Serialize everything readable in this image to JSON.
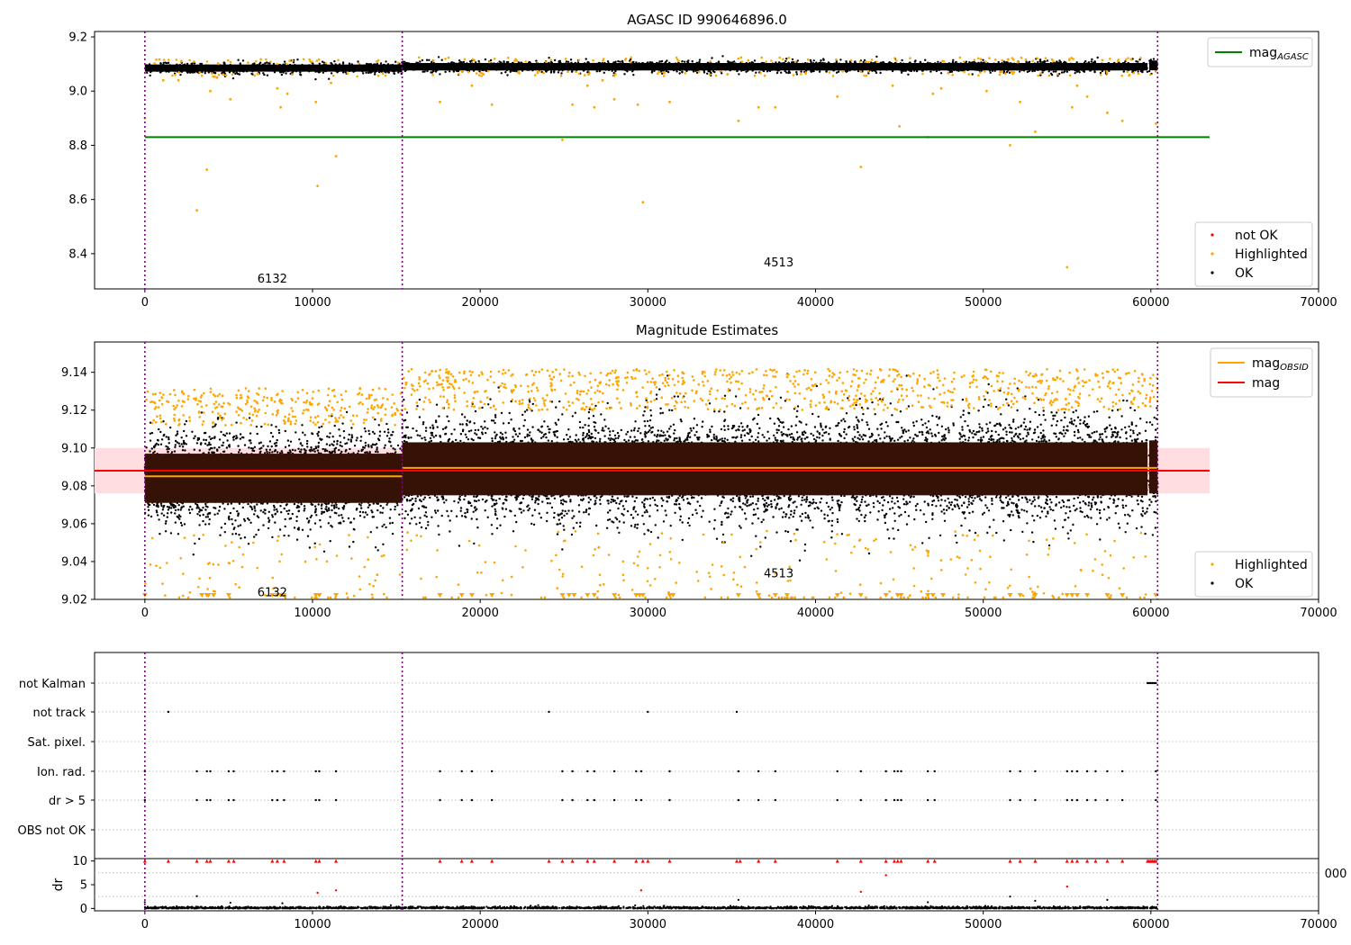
{
  "chart_data": [
    {
      "id": "top",
      "type": "scatter",
      "title": "AGASC ID 990646896.0",
      "xlim": [
        -3000,
        70000
      ],
      "ylim": [
        8.27,
        9.22
      ],
      "xticks": [
        0,
        10000,
        20000,
        30000,
        40000,
        50000,
        60000,
        70000
      ],
      "yticks": [
        8.4,
        8.6,
        8.8,
        9.0,
        9.2
      ],
      "ytick_labels": [
        "8.4",
        "8.6",
        "8.8",
        "9.0",
        "9.2"
      ],
      "obs_boundaries": [
        0,
        15350,
        60400
      ],
      "obs_labels": [
        {
          "text": "6132",
          "x": 7600,
          "y": 8.31
        },
        {
          "text": "4513",
          "x": 37800,
          "y": 8.37
        }
      ],
      "lines": [
        {
          "name": "mag_AGASC",
          "label_main": "mag",
          "label_sub": "AGASC",
          "y": 8.83,
          "x0": 0,
          "x1": 63500,
          "color": "#008000"
        }
      ],
      "band_segments": [
        {
          "x0": 0,
          "x1": 15350,
          "center": 9.085,
          "half": 0.022
        },
        {
          "x0": 15350,
          "x1": 59800,
          "center": 9.09,
          "half": 0.023
        },
        {
          "x0": 59900,
          "x1": 60400,
          "center": 9.095,
          "half": 0.03
        }
      ],
      "outliers": [
        [
          0,
          8.9
        ],
        [
          1100,
          9.04
        ],
        [
          2000,
          9.04
        ],
        [
          3100,
          8.56
        ],
        [
          3700,
          8.71
        ],
        [
          3900,
          9.0
        ],
        [
          4300,
          9.05
        ],
        [
          5100,
          8.97
        ],
        [
          7900,
          9.01
        ],
        [
          8100,
          8.94
        ],
        [
          8500,
          8.99
        ],
        [
          10200,
          8.96
        ],
        [
          10300,
          8.65
        ],
        [
          11100,
          9.03
        ],
        [
          11400,
          8.76
        ],
        [
          17600,
          8.96
        ],
        [
          19500,
          9.02
        ],
        [
          20700,
          8.95
        ],
        [
          24900,
          8.82
        ],
        [
          25500,
          8.95
        ],
        [
          26400,
          9.02
        ],
        [
          26800,
          8.94
        ],
        [
          27300,
          9.04
        ],
        [
          28000,
          8.97
        ],
        [
          29400,
          8.95
        ],
        [
          29700,
          8.59
        ],
        [
          31300,
          8.96
        ],
        [
          35400,
          8.89
        ],
        [
          36600,
          8.94
        ],
        [
          37600,
          8.94
        ],
        [
          41300,
          8.98
        ],
        [
          42700,
          8.72
        ],
        [
          44600,
          9.02
        ],
        [
          45000,
          8.87
        ],
        [
          46700,
          8.83
        ],
        [
          47000,
          8.99
        ],
        [
          47500,
          9.01
        ],
        [
          50200,
          9.0
        ],
        [
          51600,
          8.8
        ],
        [
          52200,
          8.96
        ],
        [
          53100,
          8.85
        ],
        [
          55000,
          8.35
        ],
        [
          55300,
          8.94
        ],
        [
          55600,
          9.02
        ],
        [
          56200,
          8.98
        ],
        [
          57400,
          8.92
        ],
        [
          58300,
          8.89
        ],
        [
          60300,
          8.88
        ]
      ],
      "legend_lines": [
        {
          "label_main": "mag",
          "label_sub": "AGASC",
          "color": "#008000"
        }
      ],
      "legend_markers": [
        {
          "label": "not OK",
          "color": "#ff0000"
        },
        {
          "label": "Highlighted",
          "color": "#ffa500"
        },
        {
          "label": "OK",
          "color": "#000000"
        }
      ]
    },
    {
      "id": "mid",
      "type": "scatter",
      "title": "Magnitude Estimates",
      "xlim": [
        -3000,
        70000
      ],
      "ylim": [
        9.02,
        9.156
      ],
      "xticks": [
        0,
        10000,
        20000,
        30000,
        40000,
        50000,
        60000,
        70000
      ],
      "yticks": [
        9.02,
        9.04,
        9.06,
        9.08,
        9.1,
        9.12,
        9.14
      ],
      "ytick_labels": [
        "9.02",
        "9.04",
        "9.06",
        "9.08",
        "9.10",
        "9.12",
        "9.14"
      ],
      "obs_boundaries": [
        0,
        15350,
        60400
      ],
      "obs_labels": [
        {
          "text": "6132",
          "x": 7600,
          "y": 9.024
        },
        {
          "text": "4513",
          "x": 37800,
          "y": 9.034
        }
      ],
      "mag": 9.088,
      "mag_band": [
        9.076,
        9.1
      ],
      "mag_obsid": [
        {
          "x0": 0,
          "x1": 15350,
          "y": 9.085
        },
        {
          "x0": 15350,
          "x1": 60400,
          "y": 9.0895
        }
      ],
      "density_segments": [
        {
          "x0": 0,
          "x1": 15350,
          "center": 9.084,
          "half_dense": 0.013,
          "half_spread": 0.028
        },
        {
          "x0": 15350,
          "x1": 59800,
          "center": 9.089,
          "half_dense": 0.014,
          "half_spread": 0.031
        },
        {
          "x0": 59900,
          "x1": 60400,
          "center": 9.09,
          "half_dense": 0.014,
          "half_spread": 0.03
        }
      ],
      "low_triangles_x": [
        0,
        3400,
        3700,
        3800,
        4100,
        5000,
        7600,
        7900,
        8100,
        8300,
        10200,
        10400,
        11400,
        17600,
        18900,
        19500,
        20700,
        24900,
        25300,
        25600,
        26400,
        26800,
        28000,
        29300,
        29500,
        29700,
        31300,
        31500,
        35400,
        36600,
        37600,
        38300,
        41300,
        42700,
        44200,
        44900,
        45100,
        46700,
        47000,
        47600,
        51600,
        52200,
        53100,
        55000,
        55300,
        55600,
        56200,
        57400,
        58300,
        60300
      ],
      "legend_lines": [
        {
          "label_main": "mag",
          "label_sub": "OBSID",
          "color": "#ffa500"
        },
        {
          "label_main": "mag",
          "label_sub": "",
          "color": "#ff0000"
        }
      ],
      "legend_markers": [
        {
          "label": "Highlighted",
          "color": "#ffa500"
        },
        {
          "label": "OK",
          "color": "#000000"
        }
      ]
    },
    {
      "id": "flags",
      "type": "scatter",
      "xlim": [
        -3000,
        70000
      ],
      "categories": [
        "not Kalman",
        "not track",
        "Sat. pixel.",
        "Ion. rad.",
        "dr > 5",
        "OBS not OK"
      ],
      "obs_boundaries": [
        0,
        15350,
        60400
      ],
      "flags": {
        "not Kalman": [
          59800,
          59900,
          60000,
          60100,
          60200,
          60300
        ],
        "not track": [
          1400,
          24100,
          30000,
          35300
        ],
        "Sat. pixel.": [],
        "Ion. rad.": [
          0,
          3100,
          3700,
          3900,
          5000,
          5300,
          7600,
          7900,
          8300,
          10200,
          10400,
          11400,
          17600,
          18900,
          19500,
          20700,
          24900,
          25500,
          26400,
          26800,
          28000,
          29300,
          29600,
          31300,
          35400,
          36600,
          37600,
          41300,
          42700,
          44200,
          44700,
          44900,
          45100,
          46700,
          47100,
          51600,
          52200,
          53100,
          55000,
          55300,
          55600,
          56200,
          56700,
          57400,
          58300,
          60300
        ],
        "dr > 5": [
          0,
          3100,
          3700,
          3900,
          5000,
          5300,
          7600,
          7900,
          8300,
          10200,
          10400,
          11400,
          17600,
          18900,
          19500,
          20700,
          24900,
          25500,
          26400,
          26800,
          28000,
          29300,
          29600,
          31300,
          35400,
          36600,
          37600,
          41300,
          42700,
          44200,
          44700,
          44900,
          45100,
          46700,
          47100,
          51600,
          52200,
          53100,
          55000,
          55300,
          55600,
          56200,
          56700,
          57400,
          58300,
          60300
        ],
        "OBS not OK": []
      }
    },
    {
      "id": "dr",
      "type": "scatter",
      "ylabel": "dr",
      "xlim": [
        -3000,
        70000
      ],
      "ylim": [
        -0.5,
        10.5
      ],
      "xticks": [
        0,
        10000,
        20000,
        30000,
        40000,
        50000,
        60000,
        70000
      ],
      "yticks": [
        0,
        5,
        10
      ],
      "ytick_labels": [
        "0",
        "5",
        "10"
      ],
      "obs_boundaries": [
        0,
        15350,
        60400
      ],
      "red_points": [
        [
          0,
          10
        ],
        [
          1400,
          10
        ],
        [
          3100,
          10
        ],
        [
          3700,
          10
        ],
        [
          3900,
          10
        ],
        [
          5000,
          10
        ],
        [
          5300,
          10
        ],
        [
          7600,
          10
        ],
        [
          7900,
          10
        ],
        [
          8300,
          10
        ],
        [
          10200,
          10
        ],
        [
          10300,
          3.3
        ],
        [
          10400,
          10
        ],
        [
          11400,
          10
        ],
        [
          11400,
          3.8
        ],
        [
          17600,
          10
        ],
        [
          18900,
          10
        ],
        [
          19500,
          10
        ],
        [
          20700,
          10
        ],
        [
          24100,
          10
        ],
        [
          24900,
          10
        ],
        [
          25500,
          10
        ],
        [
          26400,
          10
        ],
        [
          26800,
          10
        ],
        [
          28000,
          10
        ],
        [
          29300,
          10
        ],
        [
          29600,
          3.8
        ],
        [
          29700,
          10
        ],
        [
          30000,
          10
        ],
        [
          31300,
          10
        ],
        [
          35300,
          10
        ],
        [
          35500,
          10
        ],
        [
          36600,
          10
        ],
        [
          37600,
          10
        ],
        [
          41300,
          10
        ],
        [
          42700,
          10
        ],
        [
          42700,
          3.5
        ],
        [
          44200,
          10
        ],
        [
          44200,
          7
        ],
        [
          44700,
          10
        ],
        [
          44900,
          10
        ],
        [
          45100,
          10
        ],
        [
          46700,
          10
        ],
        [
          47100,
          10
        ],
        [
          51600,
          10
        ],
        [
          52200,
          10
        ],
        [
          53100,
          10
        ],
        [
          55000,
          10
        ],
        [
          55000,
          4.6
        ],
        [
          55300,
          10
        ],
        [
          55600,
          10
        ],
        [
          56200,
          10
        ],
        [
          56700,
          10
        ],
        [
          57400,
          10
        ],
        [
          58300,
          10
        ],
        [
          59800,
          10
        ],
        [
          59900,
          10
        ],
        [
          60000,
          10
        ],
        [
          60100,
          10
        ],
        [
          60200,
          10
        ],
        [
          60300,
          10
        ]
      ],
      "black_outliers": [
        [
          0,
          1.3
        ],
        [
          3100,
          2.6
        ],
        [
          35400,
          1.8
        ],
        [
          51600,
          2.5
        ],
        [
          53100,
          1.6
        ],
        [
          57400,
          1.8
        ],
        [
          46700,
          1.3
        ],
        [
          5100,
          1.2
        ],
        [
          8200,
          1.1
        ]
      ]
    }
  ],
  "stray_tick_text": "000"
}
